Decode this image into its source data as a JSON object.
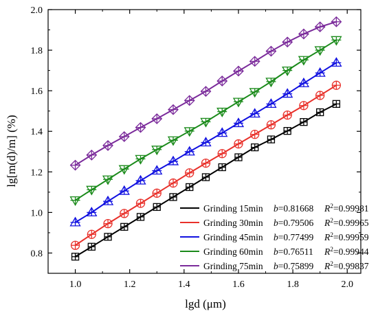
{
  "chart_data": {
    "type": "line",
    "xlabel": "lgd (μm)",
    "ylabel": "lg[m(d)/m] (%)",
    "xlim": [
      0.9,
      2.05
    ],
    "ylim": [
      0.7,
      2.0
    ],
    "xticks": [
      "1.0",
      "1.2",
      "1.4",
      "1.6",
      "1.8",
      "2.0"
    ],
    "yticks": [
      "0.8",
      "1.0",
      "1.2",
      "1.4",
      "1.6",
      "1.8",
      "2.0"
    ],
    "legend_position": "bottom-right",
    "grid": false,
    "x": [
      1.0,
      1.06,
      1.12,
      1.18,
      1.24,
      1.3,
      1.36,
      1.42,
      1.48,
      1.54,
      1.6,
      1.66,
      1.72,
      1.78,
      1.84,
      1.9,
      1.96
    ],
    "series": [
      {
        "name": "Grinding 15min",
        "b_label": "b=0.81668",
        "r2_label": "R2=0.99981",
        "color": "#000000",
        "marker": "square-plus",
        "values": [
          0.782,
          0.831,
          0.88,
          0.929,
          0.978,
          1.027,
          1.076,
          1.125,
          1.174,
          1.223,
          1.272,
          1.321,
          1.36,
          1.402,
          1.446,
          1.494,
          1.535
        ]
      },
      {
        "name": "Grinding 30min",
        "b_label": "b=0.79506",
        "r2_label": "R2=0.99965",
        "color": "#e8302a",
        "marker": "circle-plus",
        "values": [
          0.838,
          0.892,
          0.945,
          0.995,
          1.045,
          1.095,
          1.145,
          1.195,
          1.243,
          1.29,
          1.338,
          1.385,
          1.432,
          1.48,
          1.527,
          1.577,
          1.627
        ]
      },
      {
        "name": "Grinding 45min",
        "b_label": "b=0.77499",
        "r2_label": "R2=0.99959",
        "color": "#1010e0",
        "marker": "triangle-up-plus",
        "values": [
          0.951,
          1.0,
          1.055,
          1.106,
          1.157,
          1.206,
          1.252,
          1.3,
          1.345,
          1.392,
          1.44,
          1.487,
          1.535,
          1.585,
          1.637,
          1.688,
          1.738
        ]
      },
      {
        "name": "Grinding 60min",
        "b_label": "b=0.76511",
        "r2_label": "R2=0.99944",
        "color": "#1a8a1a",
        "marker": "triangle-down-plus",
        "values": [
          1.06,
          1.112,
          1.163,
          1.214,
          1.264,
          1.31,
          1.356,
          1.401,
          1.447,
          1.497,
          1.546,
          1.594,
          1.645,
          1.7,
          1.752,
          1.8,
          1.85
        ]
      },
      {
        "name": "Grinding 75min",
        "b_label": "b=0.75899",
        "r2_label": "R2=0.99837",
        "color": "#7a2a9a",
        "marker": "diamond-plus",
        "values": [
          1.233,
          1.283,
          1.33,
          1.374,
          1.419,
          1.462,
          1.507,
          1.552,
          1.597,
          1.648,
          1.697,
          1.745,
          1.795,
          1.84,
          1.88,
          1.915,
          1.94
        ]
      }
    ]
  }
}
